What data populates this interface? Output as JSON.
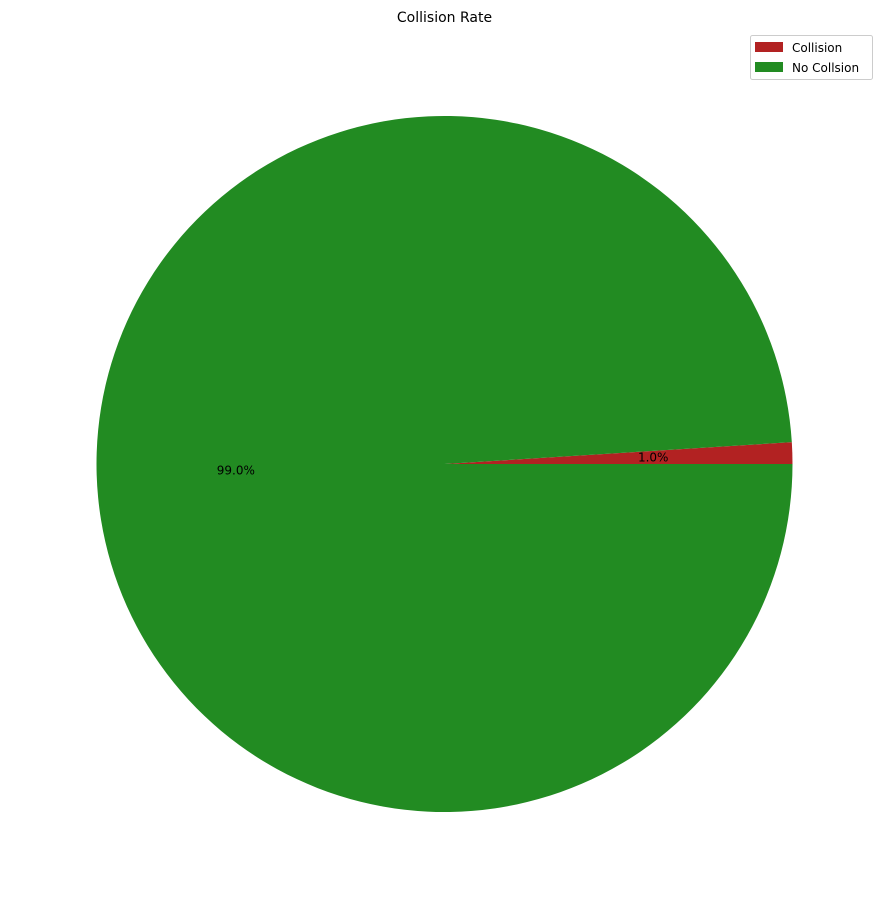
{
  "chart_data": {
    "type": "pie",
    "title": "Collision Rate",
    "labels": [
      "Collision",
      "No Collsion"
    ],
    "values": [
      1.0,
      99.0
    ],
    "percent_labels": [
      "1.0%",
      "99.0%"
    ],
    "colors": [
      "#b22222",
      "#228b22"
    ],
    "start_angle_deg": 0,
    "direction": "counterclockwise",
    "legend_location": "upper right"
  }
}
